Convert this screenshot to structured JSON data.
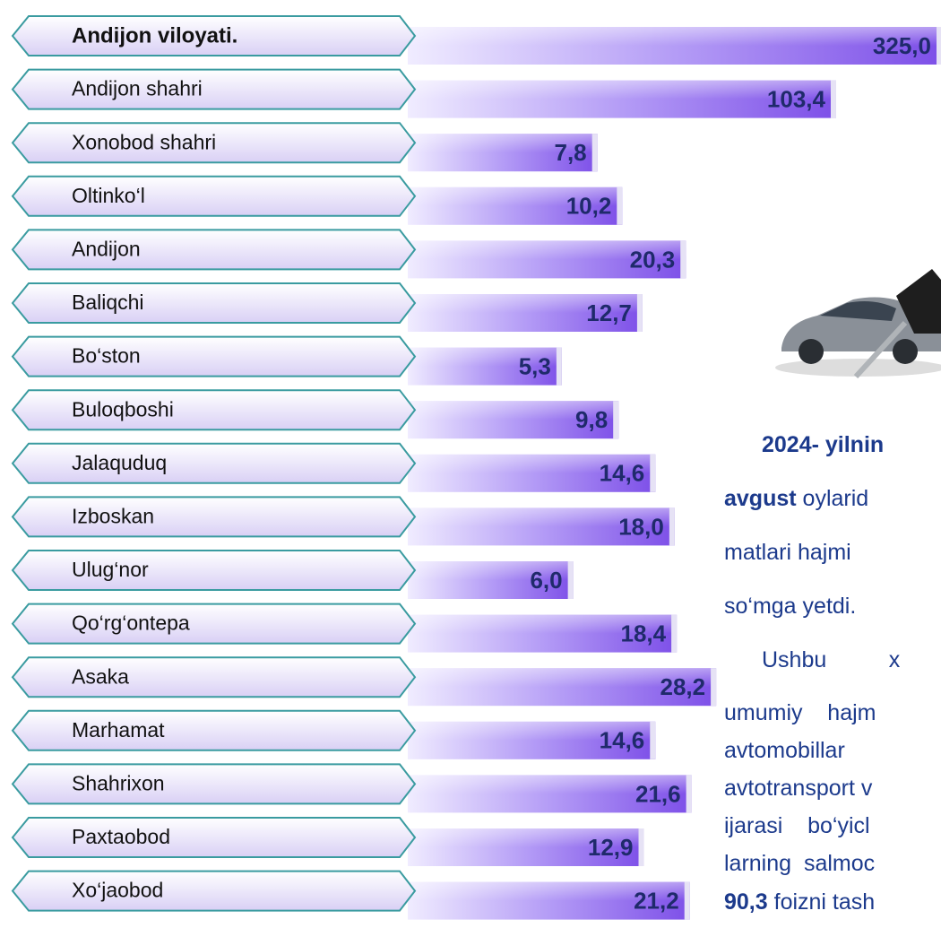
{
  "chart_data": {
    "type": "barh",
    "categories": [
      "Andijon viloyati.",
      "Andijon shahri",
      "Xonobod shahri",
      "Oltinko‘l",
      "Andijon",
      "Baliqchi",
      "Bo‘ston",
      "Buloqboshi",
      "Jalaquduq",
      "Izboskan",
      "Ulug‘nor",
      "Qo‘rg‘ontepa",
      "Asaka",
      "Marhamat",
      "Shahrixon",
      "Paxtaobod",
      "Xo‘jaobod"
    ],
    "values": [
      325.0,
      103.4,
      7.8,
      10.2,
      20.3,
      12.7,
      5.3,
      9.8,
      14.6,
      18.0,
      6.0,
      18.4,
      28.2,
      14.6,
      21.6,
      12.9,
      21.2
    ],
    "value_labels": [
      "325,0",
      "103,4",
      "7,8",
      "10,2",
      "20,3",
      "12,7",
      "5,3",
      "9,8",
      "14,6",
      "18,0",
      "6,0",
      "18,4",
      "28,2",
      "14,6",
      "21,6",
      "12,9",
      "21,2"
    ],
    "log_scale": true,
    "xlim": [
      1,
      325
    ],
    "bold_first": true,
    "color": "#8a5cf0"
  },
  "text": {
    "lines": [
      [
        {
          "text": "2024- yilnin",
          "bold": true
        }
      ],
      [
        {
          "text": "avgust",
          "bold": true
        },
        {
          "text": " oylarid",
          "bold": false
        }
      ],
      [
        {
          "text": "matlari hajmi",
          "bold": false
        }
      ],
      [
        {
          "text": "so‘mga yetdi.",
          "bold": false
        }
      ],
      [
        {
          "text": "Ushbu          x",
          "bold": false
        }
      ],
      [
        {
          "text": "umumiy    hajm",
          "bold": false
        }
      ],
      [
        {
          "text": "avtomobillar",
          "bold": false
        }
      ],
      [
        {
          "text": "avtotransport v",
          "bold": false
        }
      ],
      [
        {
          "text": "ijarasi    bo‘yicl",
          "bold": false
        }
      ],
      [
        {
          "text": "larning  salmoc",
          "bold": false
        }
      ],
      [
        {
          "text": "90,3",
          "bold": true
        },
        {
          "text": " foizni tash",
          "bold": false
        }
      ]
    ]
  }
}
